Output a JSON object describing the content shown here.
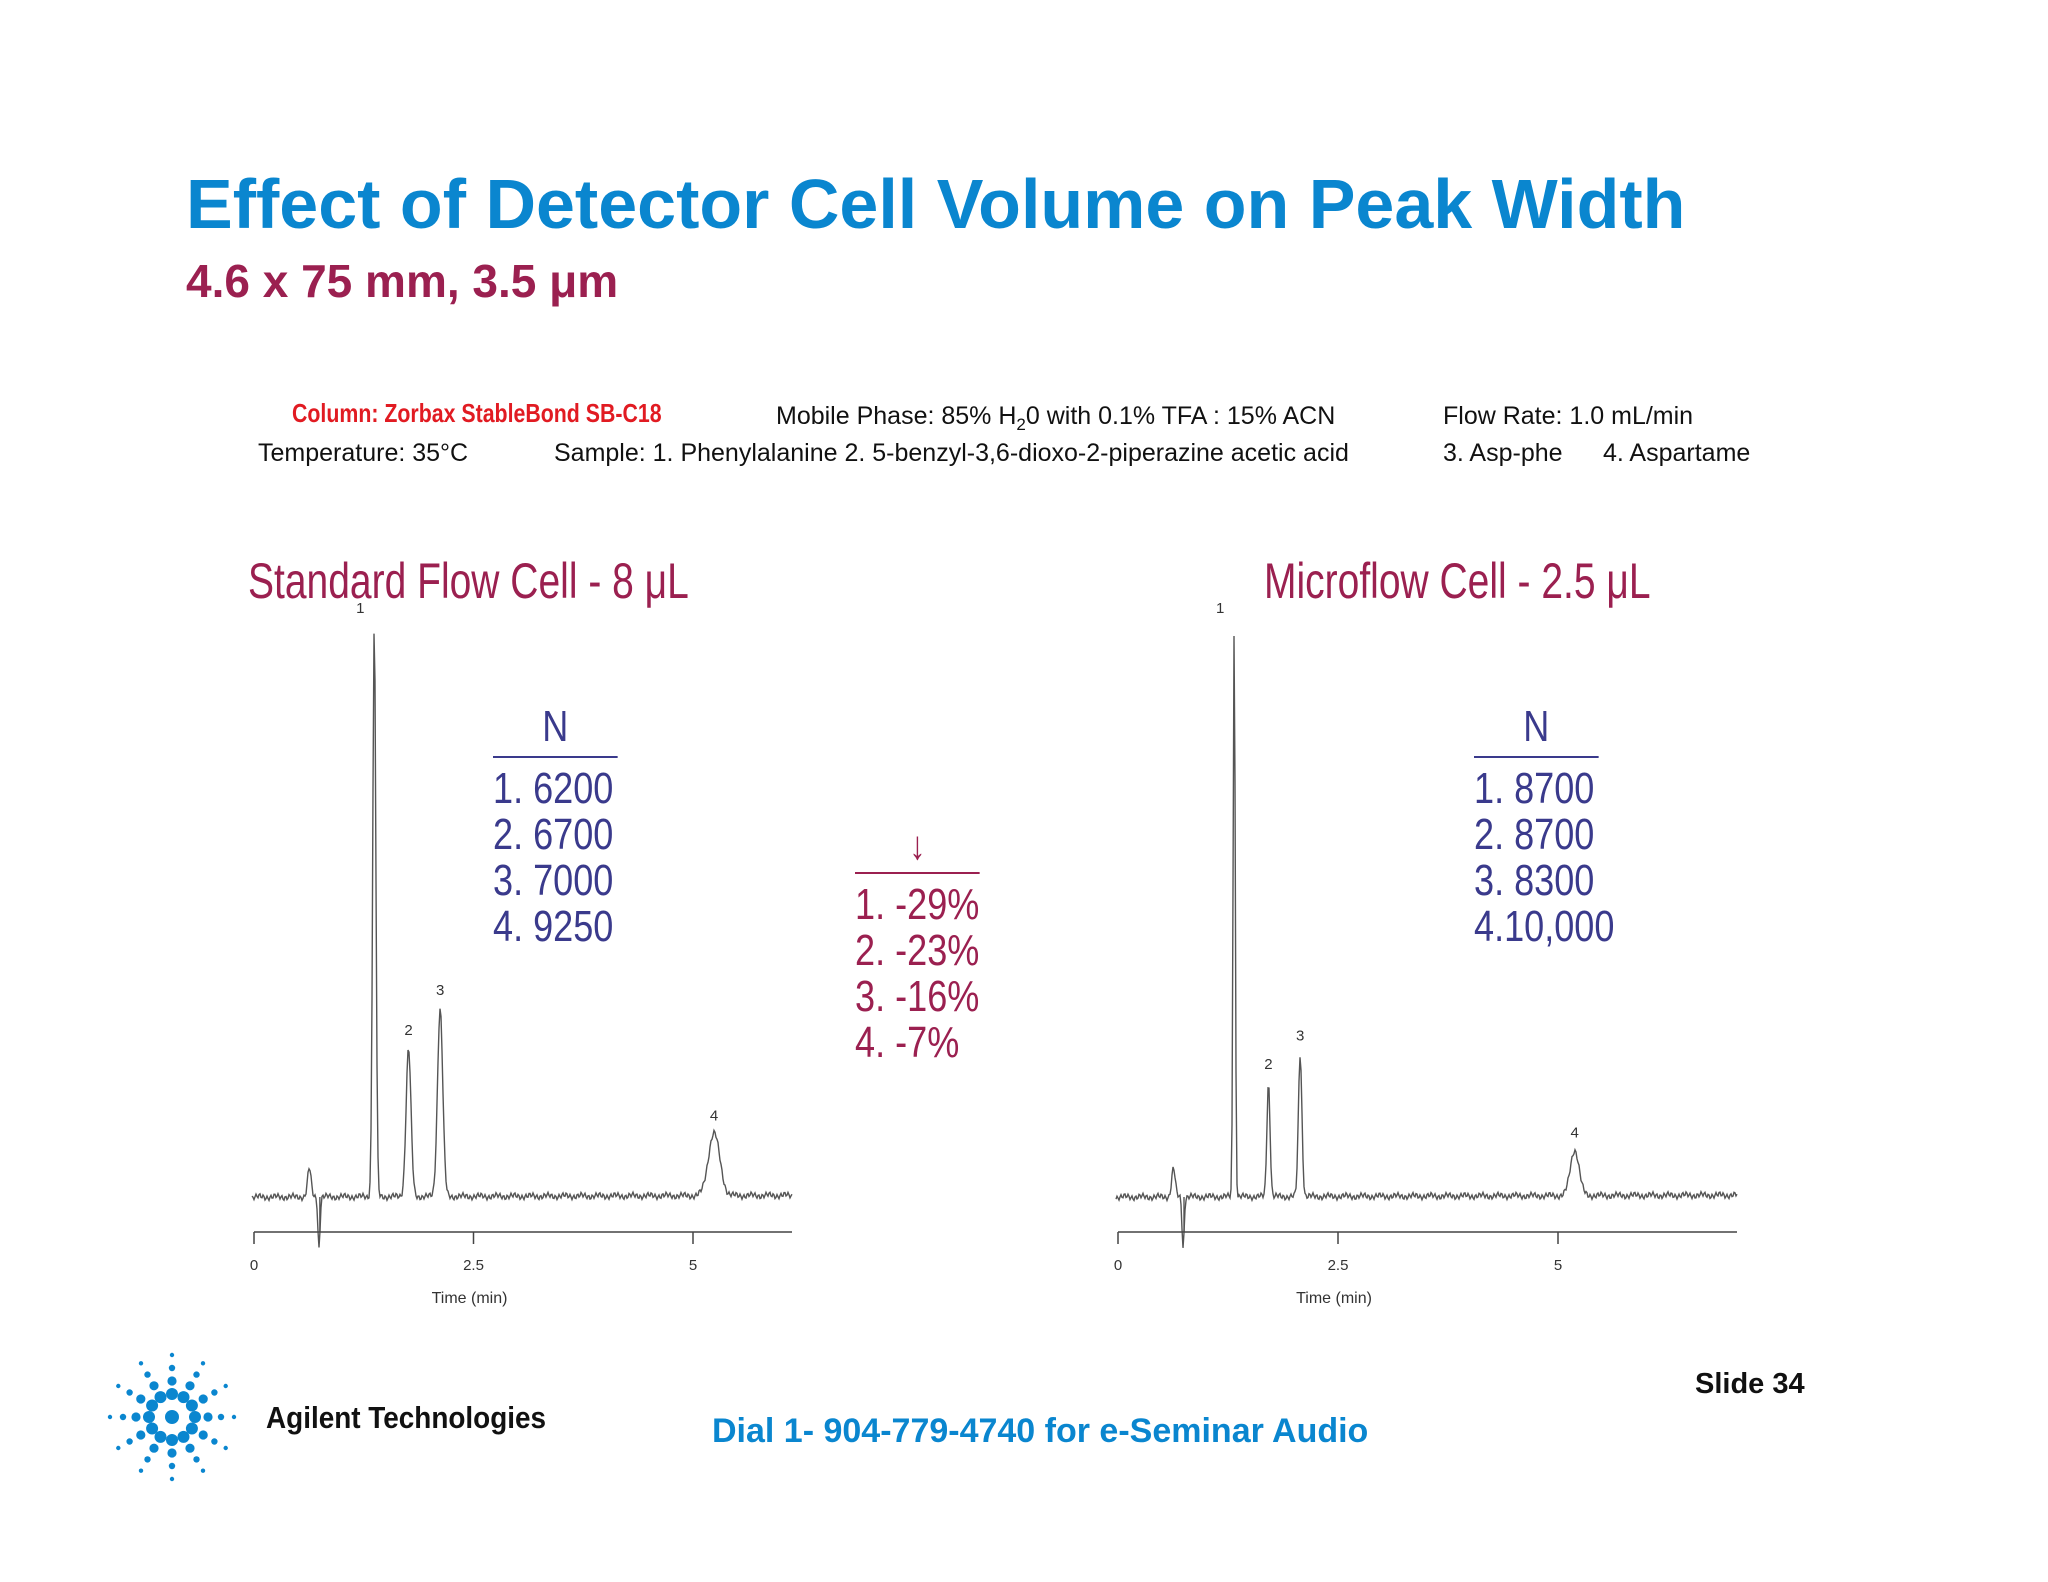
{
  "slide": {
    "title": "Effect of Detector Cell Volume on Peak Width",
    "subtitle": "4.6 x 75 mm, 3.5 μm"
  },
  "conditions": {
    "column": "Column: Zorbax StableBond SB-C18",
    "mobile_phase_prefix": "Mobile Phase:  85% H",
    "mobile_phase_sub": "2",
    "mobile_phase_suffix": "0 with 0.1% TFA  : 15% ACN",
    "flow_rate": "Flow  Rate:  1.0 mL/min",
    "temperature": "Temperature:  35°C",
    "sample": "Sample:  1. Phenylalanine     2. 5-benzyl-3,6-dioxo-2-piperazine acetic acid",
    "sample_3": "3. Asp-phe",
    "sample_4": "4. Aspartame"
  },
  "tables": {
    "standard": {
      "header": "N",
      "rows": [
        "1.  6200",
        "2.  6700",
        "3.  7000",
        "4.  9250"
      ]
    },
    "change": {
      "arrow": "↓",
      "rows": [
        "1.   -29%",
        "2.   -23%",
        "3.   -16%",
        "4.      -7%"
      ]
    },
    "micro": {
      "header": "N",
      "rows": [
        "1.   8700",
        "2.   8700",
        "3.   8300",
        "4.10,000"
      ]
    }
  },
  "chart_data": [
    {
      "type": "line",
      "title": "Standard Flow Cell - 8 μL",
      "xlabel": "Time (min)",
      "ylabel": "",
      "xlim": [
        0,
        6.1
      ],
      "ylim": [
        0,
        100
      ],
      "grid": false,
      "x_ticks": [
        0,
        2.5,
        5
      ],
      "x_tick_labels": [
        "0",
        "2.5",
        "5"
      ],
      "series": [
        {
          "peaks": [
            {
              "label": "1",
              "time": 1.37,
              "height": 100
            },
            {
              "label": "2",
              "time": 1.76,
              "height": 26
            },
            {
              "label": "3",
              "time": 2.12,
              "height": 33
            },
            {
              "label": "4",
              "time": 5.24,
              "height": 11
            }
          ]
        }
      ]
    },
    {
      "type": "line",
      "title": "Microflow Cell - 2.5 μL",
      "xlabel": "Time (min)",
      "ylabel": "",
      "xlim": [
        0,
        7.1
      ],
      "ylim": [
        0,
        100
      ],
      "grid": false,
      "x_ticks": [
        0,
        2.5,
        5
      ],
      "x_tick_labels": [
        "0",
        "2.5",
        "5"
      ],
      "series": [
        {
          "peaks": [
            {
              "label": "1",
              "time": 1.32,
              "height": 100
            },
            {
              "label": "2",
              "time": 1.71,
              "height": 20
            },
            {
              "label": "3",
              "time": 2.07,
              "height": 25
            },
            {
              "label": "4",
              "time": 5.19,
              "height": 8
            }
          ]
        }
      ]
    }
  ],
  "footer": {
    "brand": "Agilent Technologies",
    "dial": "Dial 1- 904-779-4740 for e-Seminar Audio",
    "slide_number": "Slide 34"
  },
  "colors": {
    "title": "#0a86cf",
    "subtitle": "#9b2050",
    "table": "#3a3a8c",
    "column_label": "#e11b22",
    "trace": "#555555"
  },
  "icons": {
    "logo": "agilent-spark-logo-icon"
  }
}
